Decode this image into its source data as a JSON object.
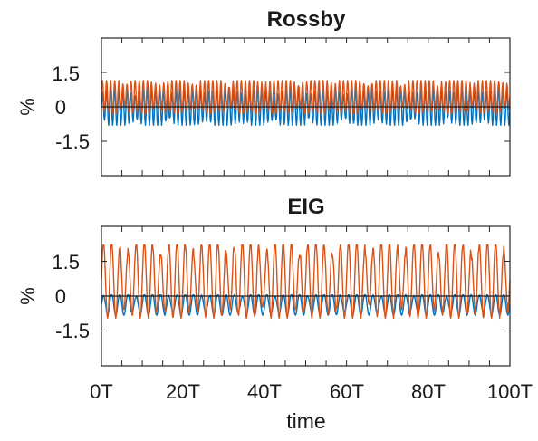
{
  "chart_data": [
    {
      "type": "line",
      "title": "Rossby",
      "ylabel": "%",
      "xlabel": "",
      "xlim": [
        0,
        100
      ],
      "ylim": [
        -3,
        3
      ],
      "yticks": [
        -1.5,
        0,
        1.5
      ],
      "ytick_labels": [
        "-1.5",
        "0",
        "1.5"
      ],
      "grid": false,
      "series": [
        {
          "color": "#0072BD",
          "band_low": -0.8,
          "band_high": 0.8,
          "mean": 0.0,
          "oscillation_period": 1.0
        },
        {
          "color": "#D95319",
          "band_low": -0.3,
          "band_high": 1.15,
          "mean": 0.45,
          "oscillation_period": 1.0
        }
      ]
    },
    {
      "type": "line",
      "title": "EIG",
      "ylabel": "%",
      "xlabel": "time",
      "xlim": [
        0,
        100
      ],
      "ylim": [
        -3,
        3
      ],
      "yticks": [
        -1.5,
        0,
        1.5
      ],
      "ytick_labels": [
        "-1.5",
        "0",
        "1.5"
      ],
      "xticks": [
        0,
        20,
        40,
        60,
        80,
        100
      ],
      "xtick_labels": [
        "0T",
        "20T",
        "40T",
        "60T",
        "80T",
        "100T"
      ],
      "grid": false,
      "series": [
        {
          "color": "#0072BD",
          "band_low": -0.9,
          "band_high": 0.05,
          "mean": -0.35,
          "oscillation_period": 2.0
        },
        {
          "color": "#D95319",
          "band_low": -1.1,
          "band_high": 2.2,
          "mean": 0.7,
          "oscillation_period": 2.0
        }
      ]
    }
  ]
}
